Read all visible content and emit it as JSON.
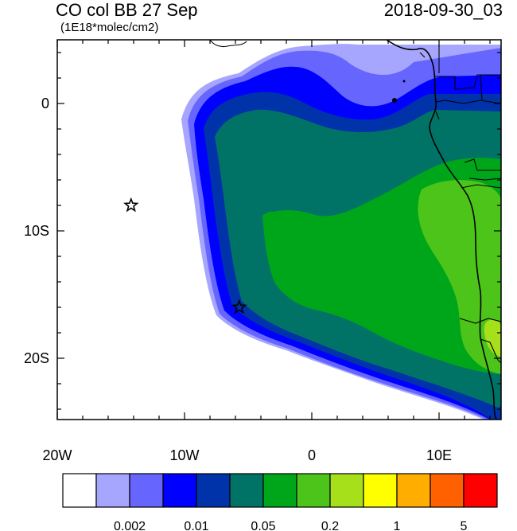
{
  "title": {
    "left": "CO col BB 27 Sep",
    "units": "(1E18*molec/cm2)",
    "right": "2018-09-30_03"
  },
  "axes": {
    "x_ticks": [
      {
        "lon": -20,
        "label": "20W"
      },
      {
        "lon": -10,
        "label": "10W"
      },
      {
        "lon": 0,
        "label": "0"
      },
      {
        "lon": 10,
        "label": "10E"
      }
    ],
    "y_ticks": [
      {
        "lat": 0,
        "label": "0"
      },
      {
        "lat": -10,
        "label": "10S"
      },
      {
        "lat": -20,
        "label": "20S"
      }
    ],
    "lon_range": [
      -20,
      15
    ],
    "lat_range": [
      -25,
      5
    ]
  },
  "colorbar": {
    "colors": [
      "#ffffff",
      "#a6a6ff",
      "#6666ff",
      "#0000ff",
      "#0033aa",
      "#007366",
      "#00a61a",
      "#4dc41a",
      "#a6e01a",
      "#ffff00",
      "#ffae00",
      "#ff6000",
      "#ff0000"
    ],
    "labels": [
      {
        "after_box": 2,
        "text": "0.002"
      },
      {
        "after_box": 4,
        "text": "0.01"
      },
      {
        "after_box": 6,
        "text": "0.05"
      },
      {
        "after_box": 8,
        "text": "0.2"
      },
      {
        "after_box": 10,
        "text": "1"
      },
      {
        "after_box": 12,
        "text": "5"
      }
    ]
  },
  "markers": [
    {
      "name": "star-marker-open",
      "lon": -14.2,
      "lat": -8.0
    },
    {
      "name": "star-marker-coast",
      "lon": -5.7,
      "lat": -16.0
    }
  ]
}
